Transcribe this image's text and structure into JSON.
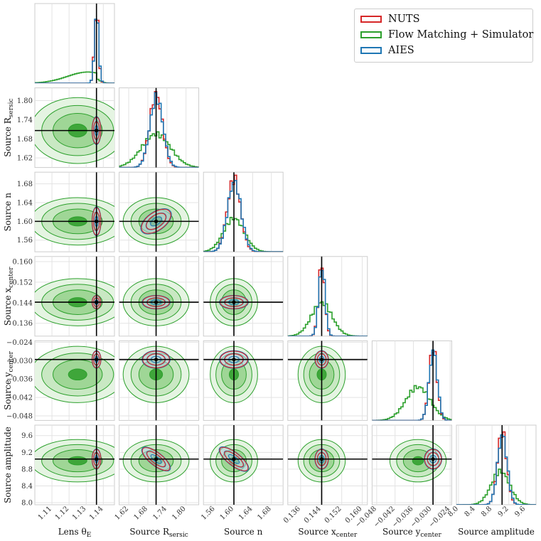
{
  "chart_data": {
    "type": "corner",
    "truth": [
      1.136,
      1.706,
      1.6,
      0.1442,
      -0.0296,
      9.04
    ],
    "params": [
      {
        "label": "Lens θ",
        "sub": "E",
        "range": [
          1.1,
          1.1465
        ],
        "ticks": [
          1.11,
          1.12,
          1.13,
          1.14
        ],
        "tick_labels": [
          "1.11",
          "1.12",
          "1.13",
          "1.14"
        ],
        "std_flow": 0.012,
        "std_mcmc": 0.0012,
        "mean_flow": 1.125
      },
      {
        "label": "Source R",
        "sub": "sersic",
        "range": [
          1.59,
          1.84
        ],
        "ticks": [
          1.62,
          1.68,
          1.74,
          1.8
        ],
        "tick_labels": [
          "1.62",
          "1.68",
          "1.74",
          "1.80"
        ],
        "std_flow": 0.045,
        "std_mcmc": 0.02,
        "mean_flow": 1.706
      },
      {
        "label": "Source n",
        "sub": "",
        "range": [
          1.535,
          1.705
        ],
        "ticks": [
          1.56,
          1.6,
          1.64,
          1.68
        ],
        "tick_labels": [
          "1.56",
          "1.60",
          "1.64",
          "1.68"
        ],
        "std_flow": 0.022,
        "std_mcmc": 0.014,
        "mean_flow": 1.6
      },
      {
        "label": "Source x",
        "sub": "center",
        "range": [
          0.131,
          0.162
        ],
        "ticks": [
          0.136,
          0.144,
          0.152,
          0.16
        ],
        "tick_labels": [
          "0.136",
          "0.144",
          "0.152",
          "0.160"
        ],
        "std_flow": 0.004,
        "std_mcmc": 0.0012,
        "mean_flow": 0.1442
      },
      {
        "label": "Source y",
        "sub": "center",
        "range": [
          -0.0495,
          -0.0235
        ],
        "ticks": [
          -0.048,
          -0.042,
          -0.036,
          -0.03,
          -0.024
        ],
        "tick_labels": [
          "−0.048",
          "−0.042",
          "−0.036",
          "−0.030",
          "−0.024"
        ],
        "std_flow": 0.004,
        "std_mcmc": 0.0013,
        "mean_flow": -0.0345
      },
      {
        "label": "Source amplitude",
        "sub": "",
        "range": [
          7.95,
          9.85
        ],
        "ticks": [
          8.0,
          8.4,
          8.8,
          9.2,
          9.6
        ],
        "tick_labels": [
          "8.0",
          "8.4",
          "8.8",
          "9.2",
          "9.6"
        ],
        "std_flow": 0.22,
        "std_mcmc": 0.11,
        "mean_flow": 9.0
      }
    ],
    "correlations_mcmc": {
      "1-5": -0.7,
      "2-5": -0.8,
      "1-2": 0.5
    },
    "series": [
      {
        "name": "NUTS",
        "color": "#d62728"
      },
      {
        "name": "Flow Matching + Simulator",
        "color": "#2ca02c"
      },
      {
        "name": "AIES",
        "color": "#1f77b4"
      }
    ],
    "x_axis_labels": [
      "Lens θ",
      "Source R",
      "Source n",
      "Source x",
      "Source y",
      "Source amplitude"
    ],
    "y_axis_labels": [
      "Source R",
      "Source n",
      "Source x",
      "Source y",
      "Source amplitude"
    ]
  },
  "legend": {
    "nuts": "NUTS",
    "flow": "Flow Matching + Simulator",
    "aies": "AIES"
  }
}
